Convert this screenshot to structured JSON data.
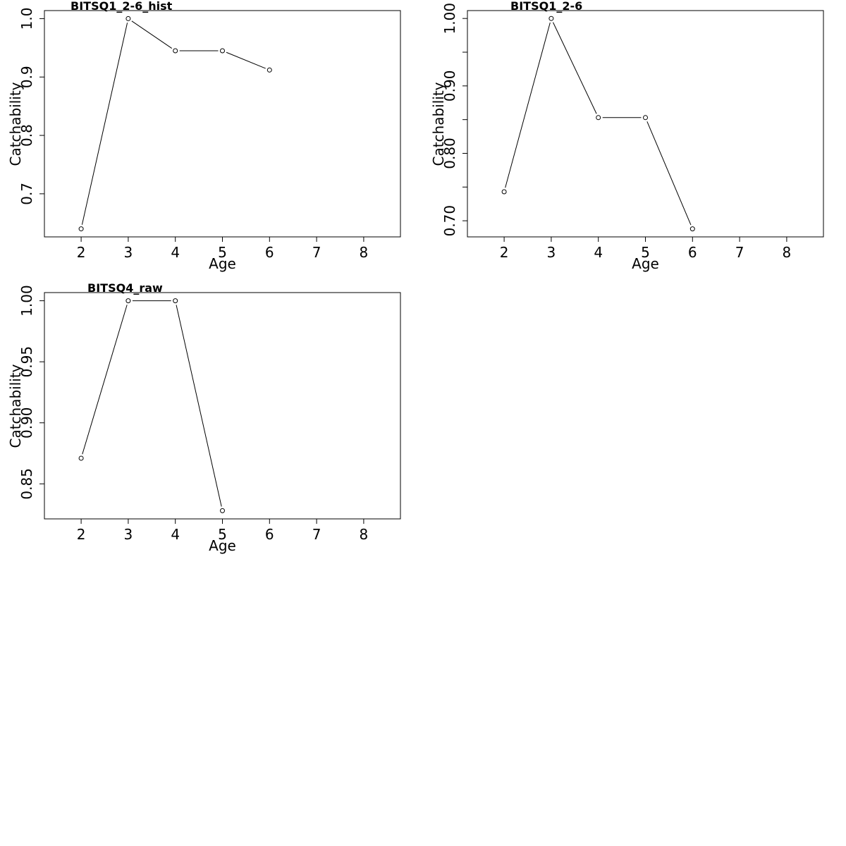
{
  "chart_data": [
    {
      "type": "line",
      "title": "BITSQ1_2-6_hist",
      "xlabel": "Age",
      "ylabel": "Catchability",
      "xlim": [
        1.22,
        8.78
      ],
      "ylim": [
        0.6262,
        1.0138
      ],
      "xticks": [
        2,
        3,
        4,
        5,
        6,
        7,
        8
      ],
      "yticks": [
        0.7,
        0.8,
        0.9,
        1.0
      ],
      "ytick_labels": [
        "0.7",
        "0.8",
        "0.9",
        "1.0"
      ],
      "minor_yticks": [],
      "x": [
        2,
        3,
        4,
        5,
        6
      ],
      "y": [
        0.64,
        1.0,
        0.945,
        0.945,
        0.912
      ]
    },
    {
      "type": "line",
      "title": "BITSQ1_2-6",
      "xlabel": "Age",
      "ylabel": "Catchability",
      "xlim": [
        1.22,
        8.78
      ],
      "ylim": [
        0.6761,
        1.0117
      ],
      "xticks": [
        2,
        3,
        4,
        5,
        6,
        7,
        8
      ],
      "yticks": [
        0.7,
        0.8,
        0.9,
        1.0
      ],
      "ytick_labels": [
        "0.70",
        "0.80",
        "0.90",
        "1.00"
      ],
      "minor_yticks": [
        0.75,
        0.85,
        0.95
      ],
      "x": [
        2,
        3,
        4,
        5,
        6
      ],
      "y": [
        0.743,
        1.0,
        0.853,
        0.853,
        0.688
      ]
    },
    {
      "type": "line",
      "title": "BITSQ4_raw",
      "xlabel": "Age",
      "ylabel": "Catchability",
      "xlim": [
        1.22,
        8.78
      ],
      "ylim": [
        0.8213,
        1.0067
      ],
      "xticks": [
        2,
        3,
        4,
        5,
        6,
        7,
        8
      ],
      "yticks": [
        0.85,
        0.9,
        0.95,
        1.0
      ],
      "ytick_labels": [
        "0.85",
        "0.90",
        "0.95",
        "1.00"
      ],
      "minor_yticks": [],
      "x": [
        2,
        3,
        4,
        5
      ],
      "y": [
        0.871,
        1.0,
        1.0,
        0.828
      ]
    }
  ]
}
